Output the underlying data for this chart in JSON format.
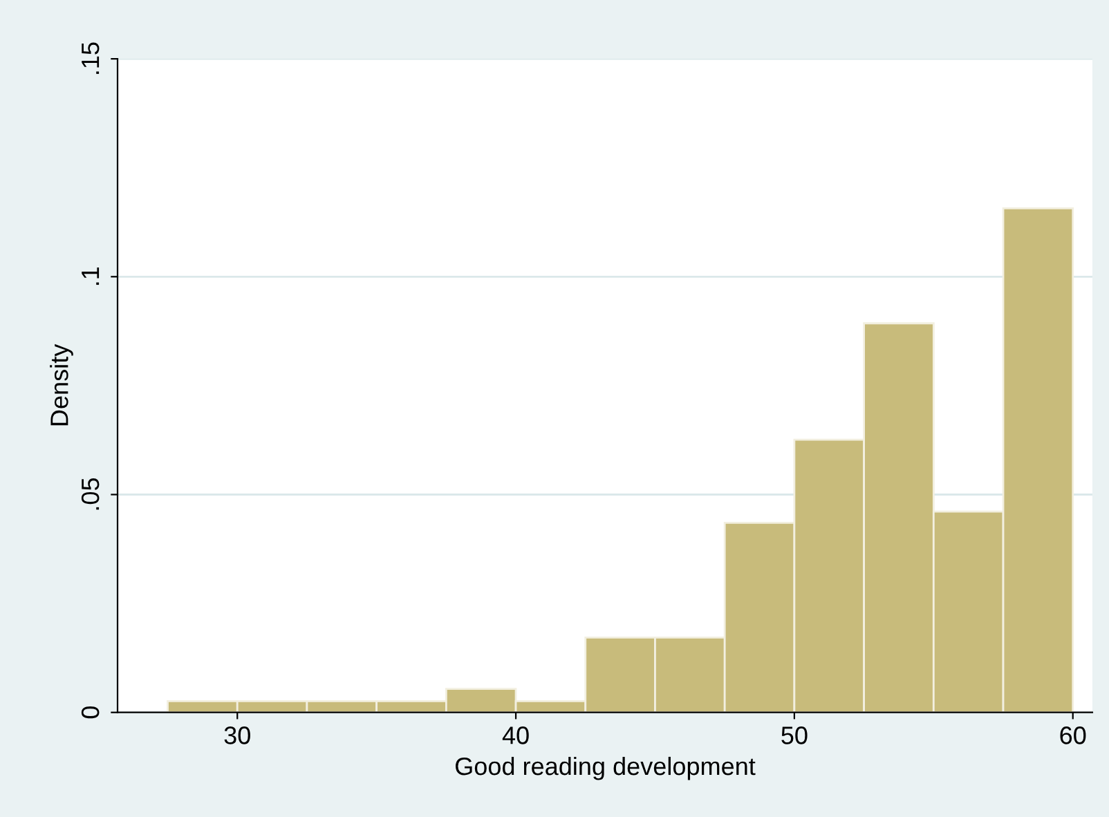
{
  "chart_data": {
    "type": "histogram",
    "xlabel": "Good reading development",
    "ylabel": "Density",
    "bins": [
      27.5,
      30,
      32.5,
      35,
      37.5,
      40,
      42.5,
      45,
      47.5,
      50,
      52.5,
      55,
      57.5,
      60
    ],
    "values": [
      0.0026,
      0.0026,
      0.0026,
      0.0026,
      0.0054,
      0.0026,
      0.0172,
      0.0172,
      0.0435,
      0.0626,
      0.0893,
      0.0461,
      0.1157
    ],
    "color": "#c8bb7b",
    "xlim": [
      25.7,
      60.7
    ],
    "xticks": [
      30,
      40,
      50,
      60
    ],
    "ylim": [
      0,
      0.15
    ],
    "yticks": [
      0,
      {
        "value": 0.05,
        "label": ".05"
      },
      {
        "value": 0.1,
        "label": ".1"
      },
      {
        "value": 0.15,
        "label": ".15"
      }
    ],
    "grid": "y"
  }
}
